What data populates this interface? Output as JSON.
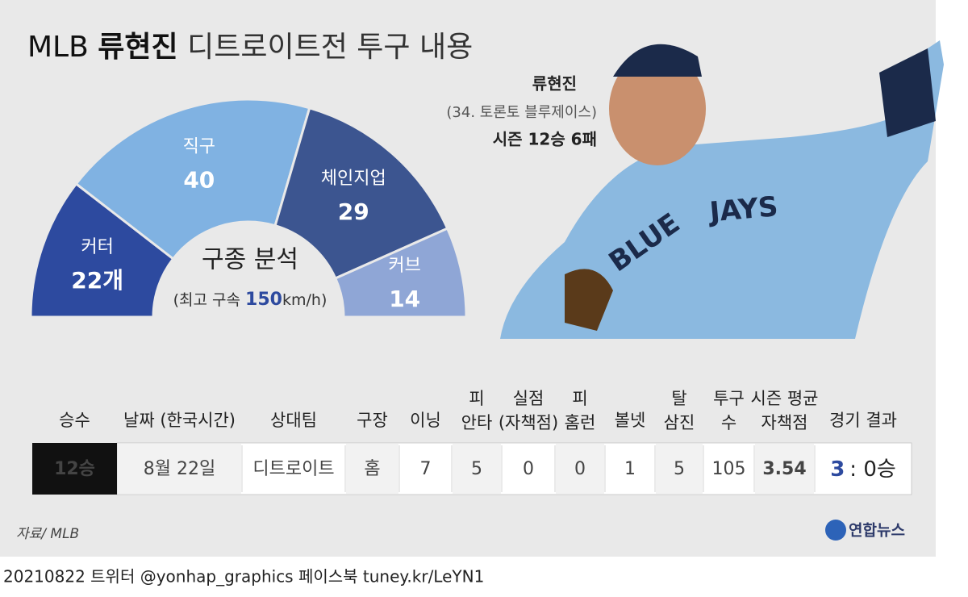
{
  "header": {
    "title_parts": [
      "MLB",
      "류현진",
      "디트로이트전 투구 내용"
    ]
  },
  "chart_data": {
    "type": "pie",
    "shape": "half-donut",
    "center_title": "구종 분석",
    "center_subtitle_parts": [
      "(최고 구속 ",
      "150",
      "km/h)"
    ],
    "categories": [
      "커터",
      "직구",
      "체인지업",
      "커브"
    ],
    "values": [
      22,
      40,
      29,
      14
    ],
    "value_labels": [
      "22개",
      "40",
      "29",
      "14"
    ],
    "colors": [
      "#2d4a9f",
      "#80b2e2",
      "#3c5590",
      "#8fa6d6"
    ]
  },
  "player": {
    "name": "류현진",
    "info": "(34. 토론토 블루제이스)",
    "season": "시즌 12승 6패"
  },
  "table": {
    "headers": [
      "승수",
      "날짜 (한국시간)",
      "상대팀",
      "구장",
      "이닝",
      "피\n안타",
      "실점\n(자책점)",
      "피\n홈런",
      "볼넷",
      "탈\n삼진",
      "투구\n수",
      "시즌 평균\n자책점",
      "경기 결과"
    ],
    "row": [
      "12승",
      "8월 22일",
      "디트로이트",
      "홈",
      "7",
      "5",
      "0",
      "0",
      "1",
      "5",
      "105",
      "3.54"
    ],
    "result_parts": [
      "3",
      ": 0승"
    ]
  },
  "footer": {
    "source": "자료/ MLB",
    "logo": "연합뉴스",
    "credit": "20210822 트위터 @yonhap_graphics  페이스북 tuney.kr/LeYN1"
  }
}
